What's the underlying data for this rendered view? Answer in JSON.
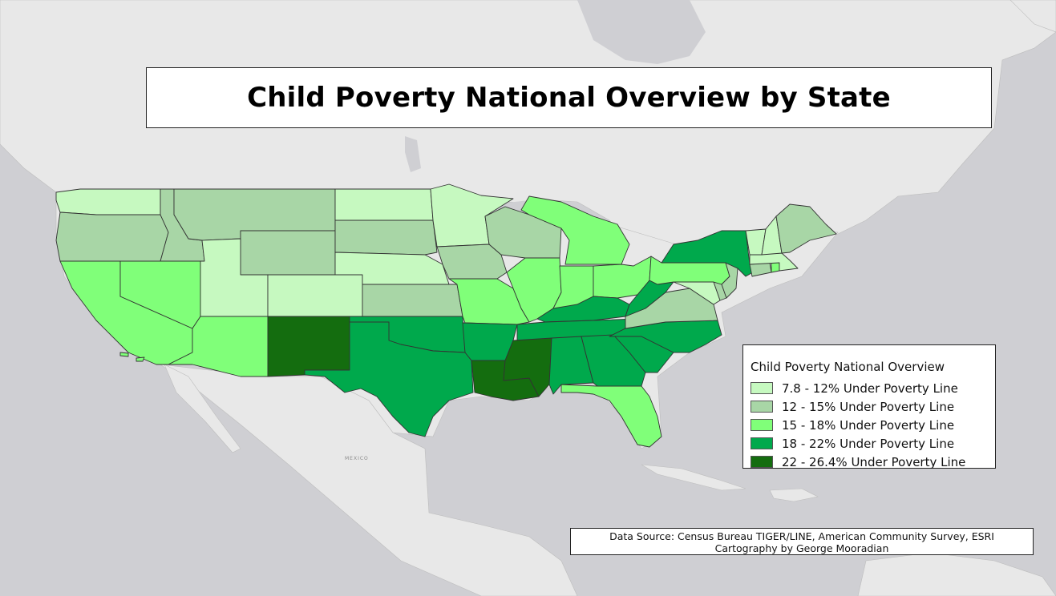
{
  "title": "Child Poverty National Overview by State",
  "legend": {
    "title": "Child Poverty National Overview",
    "classes": [
      {
        "label": "7.8 - 12% Under Poverty Line",
        "color": "#c6f9c0"
      },
      {
        "label": "12 - 15% Under Poverty Line",
        "color": "#a8d6a6"
      },
      {
        "label": "15 - 18% Under Poverty Line",
        "color": "#80ff79"
      },
      {
        "label": "18 - 22% Under Poverty Line",
        "color": "#00a94c"
      },
      {
        "label": "22 - 26.4% Under Poverty Line",
        "color": "#146d0f"
      }
    ]
  },
  "source": {
    "line1": "Data Source: Census Bureau TIGER/LINE, American Community Survey, ESRI",
    "line2": "Cartography by George Mooradian"
  },
  "basemap_labels": {
    "mexico": "MEXICO"
  },
  "colors": {
    "ocean": "#cfcfd3",
    "land": "#e8e8e8",
    "border": "#333333"
  },
  "states": [
    {
      "name": "Washington",
      "class": 0
    },
    {
      "name": "Oregon",
      "class": 1
    },
    {
      "name": "California",
      "class": 2
    },
    {
      "name": "Idaho",
      "class": 1
    },
    {
      "name": "Nevada",
      "class": 2
    },
    {
      "name": "Montana",
      "class": 1
    },
    {
      "name": "Wyoming",
      "class": 1
    },
    {
      "name": "Utah",
      "class": 0
    },
    {
      "name": "Arizona",
      "class": 2
    },
    {
      "name": "Colorado",
      "class": 0
    },
    {
      "name": "New Mexico",
      "class": 4
    },
    {
      "name": "North Dakota",
      "class": 0
    },
    {
      "name": "South Dakota",
      "class": 1
    },
    {
      "name": "Nebraska",
      "class": 0
    },
    {
      "name": "Kansas",
      "class": 1
    },
    {
      "name": "Oklahoma",
      "class": 3
    },
    {
      "name": "Texas",
      "class": 3
    },
    {
      "name": "Minnesota",
      "class": 0
    },
    {
      "name": "Iowa",
      "class": 1
    },
    {
      "name": "Missouri",
      "class": 2
    },
    {
      "name": "Arkansas",
      "class": 3
    },
    {
      "name": "Louisiana",
      "class": 4
    },
    {
      "name": "Wisconsin",
      "class": 1
    },
    {
      "name": "Michigan",
      "class": 2
    },
    {
      "name": "Illinois",
      "class": 2
    },
    {
      "name": "Indiana",
      "class": 2
    },
    {
      "name": "Ohio",
      "class": 2
    },
    {
      "name": "Kentucky",
      "class": 3
    },
    {
      "name": "Tennessee",
      "class": 3
    },
    {
      "name": "Mississippi",
      "class": 4
    },
    {
      "name": "Alabama",
      "class": 3
    },
    {
      "name": "Georgia",
      "class": 3
    },
    {
      "name": "Florida",
      "class": 2
    },
    {
      "name": "South Carolina",
      "class": 3
    },
    {
      "name": "North Carolina",
      "class": 3
    },
    {
      "name": "Virginia",
      "class": 1
    },
    {
      "name": "West Virginia",
      "class": 3
    },
    {
      "name": "Maryland",
      "class": 0
    },
    {
      "name": "Delaware",
      "class": 1
    },
    {
      "name": "Pennsylvania",
      "class": 2
    },
    {
      "name": "New Jersey",
      "class": 1
    },
    {
      "name": "New York",
      "class": 3
    },
    {
      "name": "Connecticut",
      "class": 1
    },
    {
      "name": "Rhode Island",
      "class": 2
    },
    {
      "name": "Massachusetts",
      "class": 0
    },
    {
      "name": "Vermont",
      "class": 0
    },
    {
      "name": "New Hampshire",
      "class": 0
    },
    {
      "name": "Maine",
      "class": 1
    }
  ]
}
